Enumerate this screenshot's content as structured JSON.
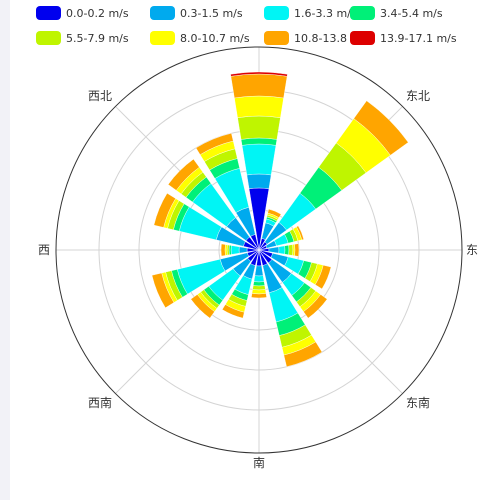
{
  "chart_data": {
    "type": "polar-stacked-bar",
    "title": "",
    "legend_position": "top",
    "speed_bins": [
      {
        "label": "0.0-0.2 m/s",
        "color": "#0000ee"
      },
      {
        "label": "0.3-1.5 m/s",
        "color": "#00aaee"
      },
      {
        "label": "1.6-3.3 m/s",
        "color": "#00f5f5"
      },
      {
        "label": "3.4-5.4 m/s",
        "color": "#00f078"
      },
      {
        "label": "5.5-7.9 m/s",
        "color": "#bff500"
      },
      {
        "label": "8.0-10.7 m/s",
        "color": "#ffff00"
      },
      {
        "label": "10.8-13.8 m/s",
        "color": "#ffa500"
      },
      {
        "label": "13.9-17.1 m/s",
        "color": "#dd0000"
      }
    ],
    "direction_labels": [
      "东北",
      "东",
      "东南",
      "南",
      "西南",
      "西",
      "西北"
    ],
    "radial_max": 9,
    "grid": true,
    "sectors": [
      {
        "direction_deg": 0,
        "values": [
          3.1,
          0.7,
          1.5,
          0.3,
          1.1,
          1.0,
          1.1,
          0.1
        ]
      },
      {
        "direction_deg": 22.5,
        "values": [
          0.6,
          0.8,
          0.2,
          0.1,
          0.1,
          0.1,
          0.2,
          0
        ]
      },
      {
        "direction_deg": 45,
        "values": [
          0.5,
          1.2,
          1.8,
          1.6,
          1.5,
          1.5,
          1.1,
          0
        ]
      },
      {
        "direction_deg": 67.5,
        "values": [
          0.4,
          0.5,
          0.6,
          0.3,
          0.2,
          0.2,
          0.1,
          0
        ]
      },
      {
        "direction_deg": 90,
        "values": [
          0.5,
          0.5,
          0.3,
          0.2,
          0.2,
          0.1,
          0.2,
          0
        ]
      },
      {
        "direction_deg": 112.5,
        "values": [
          0.7,
          0.8,
          0.8,
          0.4,
          0.3,
          0.3,
          0.4,
          0
        ]
      },
      {
        "direction_deg": 135,
        "values": [
          0.8,
          1.2,
          0.8,
          0.4,
          0.3,
          0.3,
          0.4,
          0
        ]
      },
      {
        "direction_deg": 157.5,
        "values": [
          0.8,
          1.4,
          1.5,
          0.7,
          0.6,
          0.4,
          0.6,
          0
        ]
      },
      {
        "direction_deg": 180,
        "values": [
          0.8,
          0.5,
          0.3,
          0.2,
          0.2,
          0.2,
          0.2,
          0
        ]
      },
      {
        "direction_deg": 202.5,
        "values": [
          0.8,
          0.7,
          0.8,
          0.3,
          0.3,
          0.3,
          0.3,
          0
        ]
      },
      {
        "direction_deg": 225,
        "values": [
          0.7,
          0.9,
          1.5,
          0.3,
          0.2,
          0.2,
          0.4,
          0
        ]
      },
      {
        "direction_deg": 247.5,
        "values": [
          0.6,
          1.4,
          2.2,
          0.3,
          0.3,
          0.2,
          0.5,
          0
        ]
      },
      {
        "direction_deg": 270,
        "values": [
          0.6,
          0.4,
          0.4,
          0.1,
          0.1,
          0.1,
          0.2,
          0
        ]
      },
      {
        "direction_deg": 292.5,
        "values": [
          0.8,
          1.4,
          1.9,
          0.3,
          0.3,
          0.2,
          0.5,
          0
        ]
      },
      {
        "direction_deg": 315,
        "values": [
          0.8,
          1.2,
          2.1,
          0.4,
          0.3,
          0.3,
          0.5,
          0
        ]
      },
      {
        "direction_deg": 337.5,
        "values": [
          0.8,
          1.4,
          2.0,
          0.5,
          0.5,
          0.4,
          0.4,
          0
        ]
      }
    ]
  }
}
